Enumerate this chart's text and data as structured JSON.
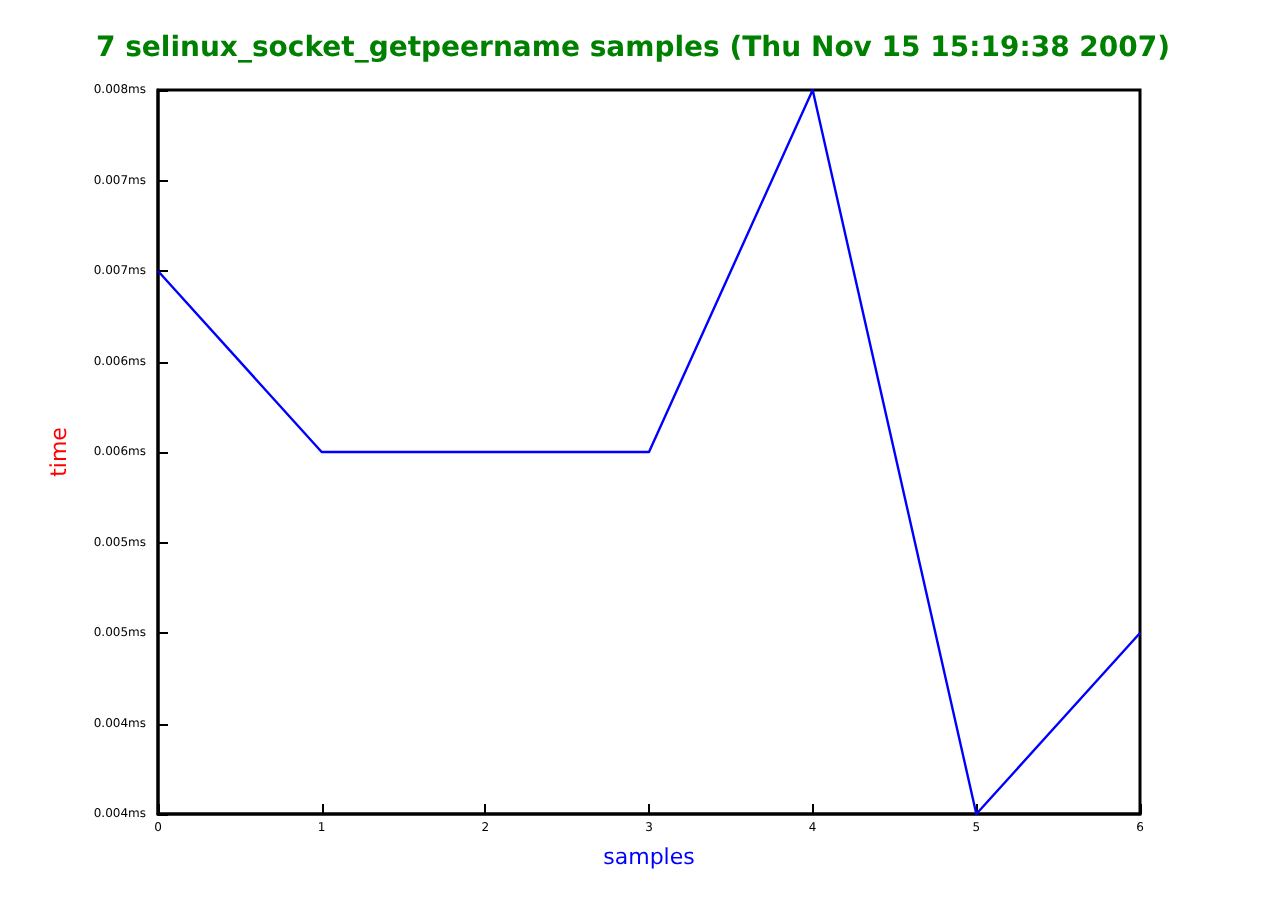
{
  "chart_data": {
    "type": "line",
    "title": "7 selinux_socket_getpeername samples (Thu Nov 15 15:19:38 2007)",
    "xlabel": "samples",
    "ylabel": "time",
    "x": [
      0,
      1,
      2,
      3,
      4,
      5,
      6
    ],
    "series": [
      {
        "color": "#0000ff",
        "values": [
          0.007,
          0.006,
          0.006,
          0.006,
          0.008,
          0.004,
          0.005
        ]
      }
    ],
    "xlim": [
      0,
      6
    ],
    "xticks": [
      0,
      1,
      2,
      3,
      4,
      5,
      6
    ],
    "ylim": [
      0.004,
      0.008
    ],
    "yticks": [
      {
        "value": 0.004,
        "label": "0.004ms"
      },
      {
        "value": 0.0045,
        "label": "0.004ms"
      },
      {
        "value": 0.005,
        "label": "0.005ms"
      },
      {
        "value": 0.0055,
        "label": "0.005ms"
      },
      {
        "value": 0.006,
        "label": "0.006ms"
      },
      {
        "value": 0.0065,
        "label": "0.006ms"
      },
      {
        "value": 0.007,
        "label": "0.007ms"
      },
      {
        "value": 0.0075,
        "label": "0.007ms"
      },
      {
        "value": 0.008,
        "label": "0.008ms"
      }
    ],
    "grid": false,
    "marker": "none",
    "line_style": "solid"
  }
}
